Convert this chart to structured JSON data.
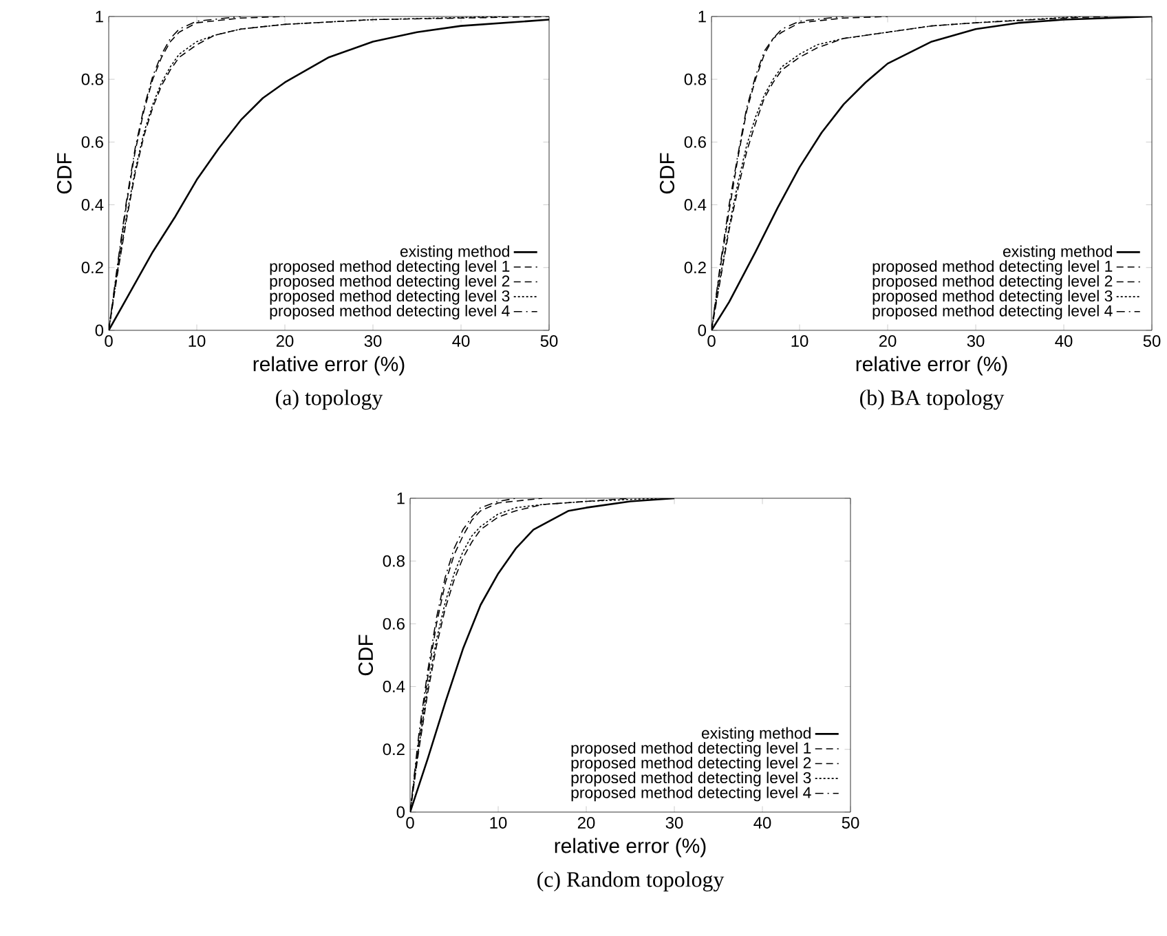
{
  "chart_data": [
    {
      "type": "line",
      "title": "(a) topology",
      "xlabel": "relative error (%)",
      "ylabel": "CDF",
      "xlim": [
        0,
        50
      ],
      "ylim": [
        0,
        1
      ],
      "xticks": [
        0,
        10,
        20,
        30,
        40,
        50
      ],
      "yticks": [
        0,
        0.2,
        0.4,
        0.6,
        0.8,
        1
      ],
      "legend": "bottom right",
      "series": [
        {
          "name": "existing method",
          "color": "#000000",
          "line_style": "solid",
          "x": [
            0,
            2,
            5,
            7.5,
            10,
            12.5,
            15,
            17.5,
            20,
            25,
            30,
            35,
            40,
            45,
            50
          ],
          "values": [
            0,
            0.1,
            0.25,
            0.36,
            0.48,
            0.58,
            0.67,
            0.74,
            0.79,
            0.87,
            0.92,
            0.95,
            0.97,
            0.98,
            0.99
          ]
        },
        {
          "name": "proposed method detecting level 1",
          "color": "#000000",
          "line_style": "dashed",
          "x": [
            0,
            1,
            2,
            3,
            4,
            5,
            6,
            7,
            8,
            10,
            15,
            20
          ],
          "values": [
            0,
            0.2,
            0.4,
            0.57,
            0.7,
            0.8,
            0.87,
            0.92,
            0.95,
            0.98,
            0.995,
            1
          ]
        },
        {
          "name": "proposed method detecting level 2",
          "color": "#000000",
          "line_style": "dashed",
          "x": [
            0,
            1,
            2,
            3,
            4,
            5,
            6,
            7,
            8,
            10,
            12,
            15,
            20,
            30,
            40,
            50
          ],
          "values": [
            0,
            0.18,
            0.35,
            0.5,
            0.62,
            0.71,
            0.78,
            0.83,
            0.87,
            0.91,
            0.94,
            0.96,
            0.975,
            0.99,
            0.995,
            1
          ]
        },
        {
          "name": "proposed method detecting level 3",
          "color": "#000000",
          "line_style": "dotted",
          "x": [
            0,
            1,
            2,
            3,
            4,
            5,
            6,
            7,
            8,
            10,
            12,
            15,
            20,
            30,
            45
          ],
          "values": [
            0,
            0.19,
            0.36,
            0.51,
            0.63,
            0.72,
            0.79,
            0.84,
            0.88,
            0.92,
            0.94,
            0.96,
            0.975,
            0.99,
            1
          ]
        },
        {
          "name": "proposed method detecting level 4",
          "color": "#000000",
          "line_style": "dashdot",
          "x": [
            0,
            1,
            2,
            3,
            4,
            5,
            6,
            7,
            8,
            10,
            15
          ],
          "values": [
            0,
            0.21,
            0.41,
            0.58,
            0.71,
            0.81,
            0.88,
            0.93,
            0.96,
            0.985,
            1
          ]
        }
      ]
    },
    {
      "type": "line",
      "title": "(b) BA topology",
      "xlabel": "relative error (%)",
      "ylabel": "CDF",
      "xlim": [
        0,
        50
      ],
      "ylim": [
        0,
        1
      ],
      "xticks": [
        0,
        10,
        20,
        30,
        40,
        50
      ],
      "yticks": [
        0,
        0.2,
        0.4,
        0.6,
        0.8,
        1
      ],
      "legend": "bottom right",
      "series": [
        {
          "name": "existing method",
          "color": "#000000",
          "line_style": "solid",
          "x": [
            0,
            2,
            5,
            7.5,
            10,
            12.5,
            15,
            17.5,
            20,
            25,
            30,
            35,
            40,
            50
          ],
          "values": [
            0,
            0.09,
            0.25,
            0.39,
            0.52,
            0.63,
            0.72,
            0.79,
            0.85,
            0.92,
            0.96,
            0.98,
            0.99,
            1
          ]
        },
        {
          "name": "proposed method detecting level 1",
          "color": "#000000",
          "line_style": "dashed",
          "x": [
            0,
            1,
            2,
            3,
            4,
            5,
            6,
            7,
            8,
            10,
            15,
            20
          ],
          "values": [
            0,
            0.2,
            0.38,
            0.55,
            0.7,
            0.8,
            0.88,
            0.93,
            0.95,
            0.98,
            0.995,
            1
          ]
        },
        {
          "name": "proposed method detecting level 2",
          "color": "#000000",
          "line_style": "dashed",
          "x": [
            0,
            1,
            2,
            3,
            4,
            5,
            6,
            7,
            8,
            10,
            12,
            15,
            20,
            25,
            30,
            40,
            45
          ],
          "values": [
            0,
            0.16,
            0.32,
            0.45,
            0.57,
            0.66,
            0.74,
            0.79,
            0.83,
            0.87,
            0.9,
            0.93,
            0.95,
            0.97,
            0.98,
            0.995,
            1
          ]
        },
        {
          "name": "proposed method detecting level 3",
          "color": "#000000",
          "line_style": "dotted",
          "x": [
            0,
            1,
            2,
            3,
            4,
            5,
            6,
            7,
            8,
            10,
            12,
            15,
            20,
            25,
            30,
            42
          ],
          "values": [
            0,
            0.17,
            0.33,
            0.47,
            0.59,
            0.68,
            0.75,
            0.8,
            0.84,
            0.88,
            0.91,
            0.93,
            0.95,
            0.97,
            0.98,
            1
          ]
        },
        {
          "name": "proposed method detecting level 4",
          "color": "#000000",
          "line_style": "dashdot",
          "x": [
            0,
            1,
            2,
            3,
            4,
            5,
            6,
            7,
            8,
            10,
            15
          ],
          "values": [
            0,
            0.21,
            0.4,
            0.56,
            0.71,
            0.81,
            0.89,
            0.93,
            0.96,
            0.985,
            1
          ]
        }
      ]
    },
    {
      "type": "line",
      "title": "(c) Random topology",
      "xlabel": "relative error (%)",
      "ylabel": "CDF",
      "xlim": [
        0,
        50
      ],
      "ylim": [
        0,
        1
      ],
      "xticks": [
        0,
        10,
        20,
        30,
        40,
        50
      ],
      "yticks": [
        0,
        0.2,
        0.4,
        0.6,
        0.8,
        1
      ],
      "legend": "bottom right",
      "series": [
        {
          "name": "existing method",
          "color": "#000000",
          "line_style": "solid",
          "x": [
            0,
            2,
            4,
            6,
            8,
            10,
            12,
            14,
            16,
            18,
            20,
            25,
            30
          ],
          "values": [
            0,
            0.17,
            0.35,
            0.52,
            0.66,
            0.76,
            0.84,
            0.9,
            0.93,
            0.96,
            0.97,
            0.99,
            1
          ]
        },
        {
          "name": "proposed method detecting level 1",
          "color": "#000000",
          "line_style": "dashed",
          "x": [
            0,
            1,
            2,
            3,
            4,
            5,
            6,
            7,
            8,
            10,
            15
          ],
          "values": [
            0,
            0.23,
            0.43,
            0.6,
            0.73,
            0.82,
            0.88,
            0.93,
            0.96,
            0.985,
            1
          ]
        },
        {
          "name": "proposed method detecting level 2",
          "color": "#000000",
          "line_style": "dashed",
          "x": [
            0,
            1,
            2,
            3,
            4,
            5,
            6,
            7,
            8,
            10,
            12,
            15,
            20,
            25
          ],
          "values": [
            0,
            0.2,
            0.38,
            0.53,
            0.65,
            0.74,
            0.81,
            0.86,
            0.9,
            0.94,
            0.96,
            0.98,
            0.99,
            1
          ]
        },
        {
          "name": "proposed method detecting level 3",
          "color": "#000000",
          "line_style": "dotted",
          "x": [
            0,
            1,
            2,
            3,
            4,
            5,
            6,
            7,
            8,
            10,
            12,
            15,
            20,
            28
          ],
          "values": [
            0,
            0.21,
            0.4,
            0.55,
            0.67,
            0.76,
            0.83,
            0.88,
            0.91,
            0.95,
            0.97,
            0.98,
            0.99,
            1
          ]
        },
        {
          "name": "proposed method detecting level 4",
          "color": "#000000",
          "line_style": "dashdot",
          "x": [
            0,
            1,
            2,
            3,
            4,
            5,
            6,
            7,
            8,
            10,
            12
          ],
          "values": [
            0,
            0.25,
            0.45,
            0.62,
            0.75,
            0.84,
            0.9,
            0.94,
            0.97,
            0.99,
            1
          ]
        }
      ]
    }
  ]
}
